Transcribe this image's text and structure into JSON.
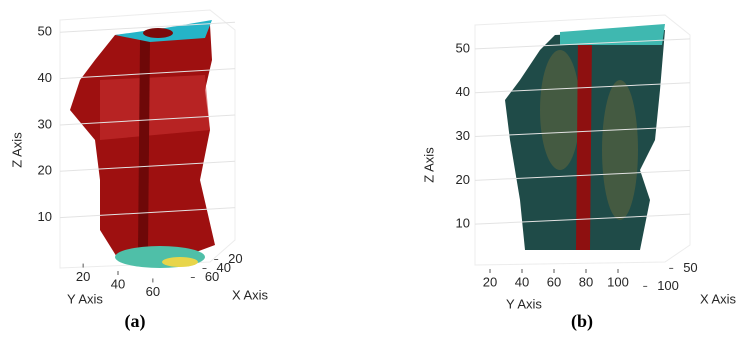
{
  "chart_data": [
    {
      "type": "isosurface",
      "caption": "(a)",
      "xlabel": "X Axis",
      "ylabel": "Y Axis",
      "zlabel": "Z Axis",
      "xlim": [
        10,
        70
      ],
      "xticks": [
        20,
        40,
        60
      ],
      "ylim": [
        5,
        75
      ],
      "yticks": [
        20,
        40,
        60
      ],
      "zlim": [
        0,
        52
      ],
      "zticks": [
        10,
        20,
        30,
        40,
        50
      ],
      "grid": true
    },
    {
      "type": "isosurface",
      "caption": "(b)",
      "xlabel": "X Axis",
      "ylabel": "Y Axis",
      "zlabel": "Z Axis",
      "xlim": [
        10,
        110
      ],
      "xticks": [
        50,
        100
      ],
      "ylim": [
        5,
        110
      ],
      "yticks": [
        20,
        40,
        60,
        80,
        100
      ],
      "zlim": [
        0,
        55
      ],
      "zticks": [
        10,
        20,
        30,
        40,
        50
      ],
      "grid": true
    }
  ]
}
